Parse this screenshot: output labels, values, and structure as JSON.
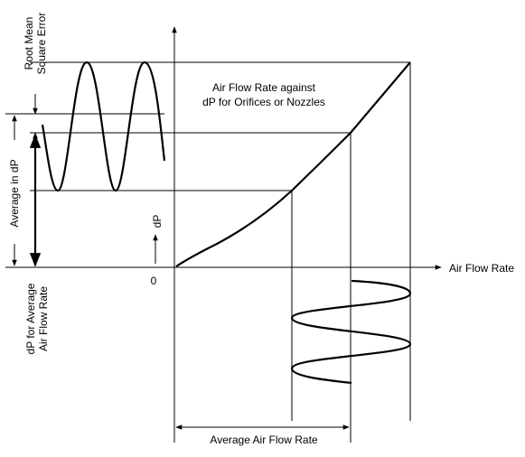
{
  "labels": {
    "rms_error_line1": "Root Mean",
    "rms_error_line2": "Square Error",
    "curve_title_line1": "Air Flow Rate against",
    "curve_title_line2": "dP for Orifices or Nozzles",
    "average_in_dp": "Average  in dP",
    "dp_axis": "dP",
    "origin": "0",
    "air_flow_rate_axis": "Air Flow Rate",
    "dp_for_average_line1": "dP for Average",
    "dp_for_average_line2": "Air Flow Rate",
    "average_air_flow_rate": "Average  Air Flow Rate"
  },
  "colors": {
    "stroke": "#000000",
    "background": "#ffffff"
  }
}
